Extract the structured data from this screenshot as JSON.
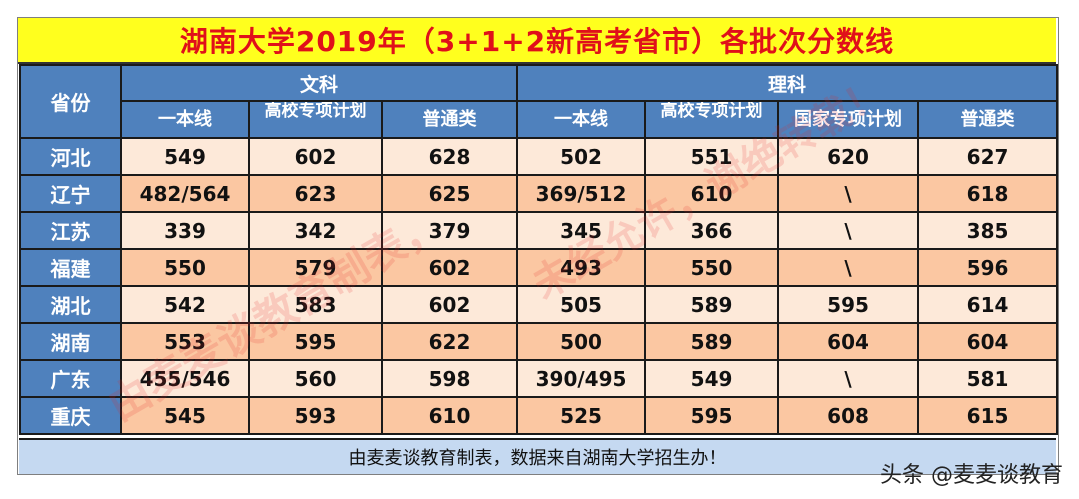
{
  "title": "湖南大学2019年（3+1+2新高考省市）各批次分数线",
  "header": {
    "province_label": "省份",
    "arts_label": "文科",
    "science_label": "理科",
    "arts_cols": [
      "一本线",
      "高校专项计划",
      "普通类"
    ],
    "science_cols": [
      "一本线",
      "高校专项计划",
      "国家专项计划",
      "普通类"
    ]
  },
  "rows": [
    {
      "province": "河北",
      "values": [
        "549",
        "602",
        "628",
        "502",
        "551",
        "620",
        "627"
      ]
    },
    {
      "province": "辽宁",
      "values": [
        "482/564",
        "623",
        "625",
        "369/512",
        "610",
        "\\",
        "618"
      ]
    },
    {
      "province": "江苏",
      "values": [
        "339",
        "342",
        "379",
        "345",
        "366",
        "\\",
        "385"
      ]
    },
    {
      "province": "福建",
      "values": [
        "550",
        "579",
        "602",
        "493",
        "550",
        "\\",
        "596"
      ]
    },
    {
      "province": "湖北",
      "values": [
        "542",
        "583",
        "602",
        "505",
        "589",
        "595",
        "614"
      ]
    },
    {
      "province": "湖南",
      "values": [
        "553",
        "595",
        "622",
        "500",
        "589",
        "604",
        "604"
      ]
    },
    {
      "province": "广东",
      "values": [
        "455/546",
        "560",
        "598",
        "390/495",
        "549",
        "\\",
        "581"
      ]
    },
    {
      "province": "重庆",
      "values": [
        "545",
        "593",
        "610",
        "525",
        "595",
        "608",
        "615"
      ]
    }
  ],
  "footer_note": "由麦麦谈教育制表，数据来自湖南大学招生办！",
  "watermark_left": "由麦麦谈教育制表，",
  "watermark_right": "未经允许，谢绝转载！",
  "credit": "头条 @麦麦谈教育",
  "colors": {
    "title_bg": "#ffff1e",
    "title_text": "#e0101a",
    "header_bg": "#4f81bd",
    "row_light": "#fde9d9",
    "row_dark": "#fbc7a2",
    "footer_bg": "#c5d9f1"
  }
}
